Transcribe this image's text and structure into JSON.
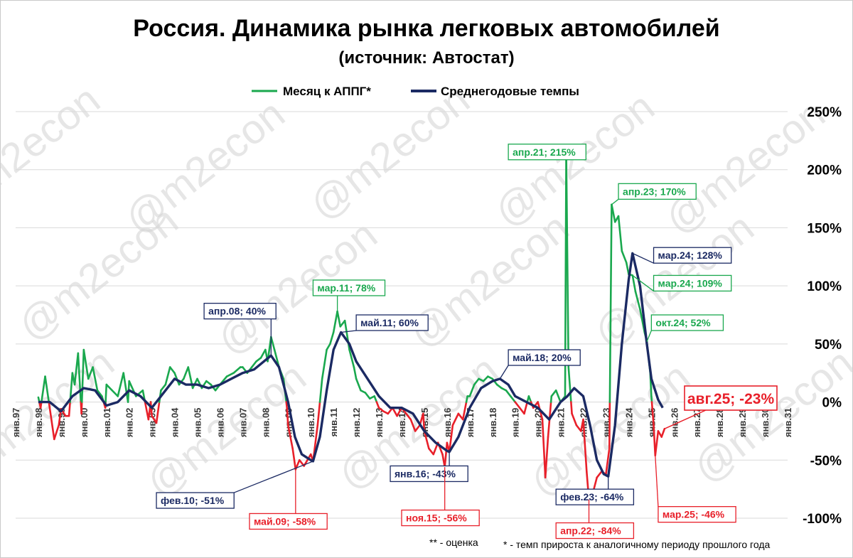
{
  "chart_data": {
    "type": "line",
    "title": "Россия. Динамика рынка легковых автомобилей",
    "subtitle": "(источник: Автостат)",
    "ylim": [
      -1.0,
      2.5
    ],
    "y_ticks": [
      "250%",
      "200%",
      "150%",
      "100%",
      "50%",
      "0%",
      "-50%",
      "-100%"
    ],
    "x_ticks": [
      "янв.97",
      "янв.98",
      "янв.99",
      "янв.00",
      "янв.01",
      "янв.02",
      "янв.03",
      "янв.04",
      "янв.05",
      "янв.06",
      "янв.07",
      "янв.08",
      "янв.09",
      "янв.10",
      "янв.11",
      "янв.12",
      "янв.13",
      "янв.14",
      "янв.15",
      "янв.16",
      "янв.17",
      "янв.18",
      "янв.19",
      "янв.20",
      "янв.21",
      "янв.22",
      "янв.23",
      "янв.24",
      "янв.25",
      "янв.26",
      "янв.27",
      "янв.28",
      "янв.29",
      "янв.30",
      "янв.31"
    ],
    "grid": true,
    "legend_position": "top-center",
    "series": [
      {
        "name": "Месяц к АППГ*",
        "color": "#1aa84e",
        "negative_color": "#e8202a",
        "points": [
          [
            1998.0,
            0.04
          ],
          [
            1998.1,
            -0.05
          ],
          [
            1998.3,
            0.22
          ],
          [
            1998.5,
            -0.05
          ],
          [
            1998.7,
            -0.32
          ],
          [
            1998.9,
            -0.2
          ],
          [
            1999.0,
            -0.06
          ],
          [
            1999.2,
            -0.12
          ],
          [
            1999.35,
            -0.12
          ],
          [
            1999.5,
            0.25
          ],
          [
            1999.6,
            0.15
          ],
          [
            1999.75,
            0.42
          ],
          [
            1999.9,
            -0.1
          ],
          [
            2000.0,
            0.45
          ],
          [
            2000.2,
            0.2
          ],
          [
            2000.4,
            0.3
          ],
          [
            2000.6,
            0.1
          ],
          [
            2000.8,
            0.05
          ],
          [
            2000.95,
            -0.05
          ],
          [
            2001.0,
            0.15
          ],
          [
            2001.25,
            0.1
          ],
          [
            2001.5,
            0.05
          ],
          [
            2001.75,
            0.25
          ],
          [
            2001.95,
            0.0
          ],
          [
            2002.0,
            0.18
          ],
          [
            2002.3,
            0.05
          ],
          [
            2002.6,
            0.1
          ],
          [
            2002.85,
            -0.15
          ],
          [
            2002.95,
            0.0
          ],
          [
            2003.0,
            -0.12
          ],
          [
            2003.2,
            -0.18
          ],
          [
            2003.4,
            0.1
          ],
          [
            2003.6,
            0.15
          ],
          [
            2003.8,
            0.3
          ],
          [
            2004.0,
            0.25
          ],
          [
            2004.2,
            0.15
          ],
          [
            2004.4,
            0.2
          ],
          [
            2004.6,
            0.3
          ],
          [
            2004.8,
            0.12
          ],
          [
            2005.0,
            0.2
          ],
          [
            2005.2,
            0.12
          ],
          [
            2005.4,
            0.18
          ],
          [
            2005.6,
            0.15
          ],
          [
            2005.8,
            0.1
          ],
          [
            2006.0,
            0.15
          ],
          [
            2006.3,
            0.22
          ],
          [
            2006.6,
            0.25
          ],
          [
            2006.9,
            0.3
          ],
          [
            2007.0,
            0.3
          ],
          [
            2007.2,
            0.25
          ],
          [
            2007.4,
            0.3
          ],
          [
            2007.6,
            0.35
          ],
          [
            2007.8,
            0.38
          ],
          [
            2008.0,
            0.45
          ],
          [
            2008.1,
            0.35
          ],
          [
            2008.25,
            0.56
          ],
          [
            2008.4,
            0.45
          ],
          [
            2008.6,
            0.3
          ],
          [
            2008.8,
            0.2
          ],
          [
            2008.95,
            -0.05
          ],
          [
            2009.0,
            -0.2
          ],
          [
            2009.2,
            -0.4
          ],
          [
            2009.33,
            -0.58
          ],
          [
            2009.5,
            -0.5
          ],
          [
            2009.7,
            -0.55
          ],
          [
            2009.85,
            -0.5
          ],
          [
            2010.0,
            -0.45
          ],
          [
            2010.1,
            -0.51
          ],
          [
            2010.3,
            -0.2
          ],
          [
            2010.5,
            0.2
          ],
          [
            2010.7,
            0.45
          ],
          [
            2010.85,
            0.5
          ],
          [
            2011.0,
            0.6
          ],
          [
            2011.17,
            0.78
          ],
          [
            2011.3,
            0.65
          ],
          [
            2011.5,
            0.7
          ],
          [
            2011.7,
            0.45
          ],
          [
            2011.9,
            0.3
          ],
          [
            2012.0,
            0.2
          ],
          [
            2012.2,
            0.1
          ],
          [
            2012.4,
            0.08
          ],
          [
            2012.6,
            0.03
          ],
          [
            2012.8,
            0.05
          ],
          [
            2013.0,
            -0.05
          ],
          [
            2013.2,
            -0.08
          ],
          [
            2013.4,
            -0.1
          ],
          [
            2013.6,
            -0.05
          ],
          [
            2013.8,
            -0.12
          ],
          [
            2014.0,
            -0.05
          ],
          [
            2014.2,
            -0.1
          ],
          [
            2014.4,
            -0.15
          ],
          [
            2014.6,
            -0.25
          ],
          [
            2014.8,
            -0.2
          ],
          [
            2014.95,
            -0.1
          ],
          [
            2015.0,
            -0.25
          ],
          [
            2015.2,
            -0.4
          ],
          [
            2015.4,
            -0.45
          ],
          [
            2015.6,
            -0.35
          ],
          [
            2015.8,
            -0.45
          ],
          [
            2015.9,
            -0.56
          ],
          [
            2016.0,
            -0.35
          ],
          [
            2016.1,
            -0.43
          ],
          [
            2016.25,
            -0.2
          ],
          [
            2016.5,
            -0.1
          ],
          [
            2016.7,
            -0.15
          ],
          [
            2016.9,
            0.05
          ],
          [
            2017.0,
            0.05
          ],
          [
            2017.2,
            0.15
          ],
          [
            2017.4,
            0.2
          ],
          [
            2017.6,
            0.18
          ],
          [
            2017.8,
            0.22
          ],
          [
            2018.0,
            0.2
          ],
          [
            2018.2,
            0.15
          ],
          [
            2018.4,
            0.12
          ],
          [
            2018.6,
            0.1
          ],
          [
            2018.8,
            0.05
          ],
          [
            2019.0,
            0.0
          ],
          [
            2019.2,
            -0.05
          ],
          [
            2019.4,
            -0.1
          ],
          [
            2019.6,
            0.05
          ],
          [
            2019.8,
            -0.05
          ],
          [
            2020.0,
            0.0
          ],
          [
            2020.2,
            -0.15
          ],
          [
            2020.33,
            -0.65
          ],
          [
            2020.45,
            -0.3
          ],
          [
            2020.6,
            0.05
          ],
          [
            2020.8,
            0.1
          ],
          [
            2021.0,
            0.0
          ],
          [
            2021.2,
            0.05
          ],
          [
            2021.25,
            2.15
          ],
          [
            2021.35,
            0.3
          ],
          [
            2021.5,
            -0.1
          ],
          [
            2021.7,
            -0.2
          ],
          [
            2021.9,
            -0.25
          ],
          [
            2022.0,
            -0.15
          ],
          [
            2022.15,
            -0.6
          ],
          [
            2022.25,
            -0.84
          ],
          [
            2022.4,
            -0.8
          ],
          [
            2022.6,
            -0.65
          ],
          [
            2022.8,
            -0.6
          ],
          [
            2023.0,
            -0.62
          ],
          [
            2023.15,
            -0.4
          ],
          [
            2023.25,
            1.7
          ],
          [
            2023.4,
            1.55
          ],
          [
            2023.55,
            1.6
          ],
          [
            2023.7,
            1.3
          ],
          [
            2023.9,
            1.2
          ],
          [
            2024.0,
            1.1
          ],
          [
            2024.17,
            1.09
          ],
          [
            2024.3,
            0.95
          ],
          [
            2024.5,
            0.8
          ],
          [
            2024.7,
            0.6
          ],
          [
            2024.8,
            0.52
          ],
          [
            2024.95,
            0.25
          ],
          [
            2025.0,
            0.05
          ],
          [
            2025.1,
            -0.2
          ],
          [
            2025.17,
            -0.46
          ],
          [
            2025.3,
            -0.25
          ],
          [
            2025.45,
            -0.3
          ],
          [
            2025.58,
            -0.23
          ]
        ]
      },
      {
        "name": "Среднегодовые темпы",
        "color": "#1b2a63",
        "points": [
          [
            1998.0,
            0.0
          ],
          [
            1998.5,
            0.0
          ],
          [
            1999.0,
            -0.08
          ],
          [
            1999.5,
            0.05
          ],
          [
            2000.0,
            0.12
          ],
          [
            2000.5,
            0.1
          ],
          [
            2001.0,
            -0.03
          ],
          [
            2001.5,
            0.0
          ],
          [
            2002.0,
            0.1
          ],
          [
            2002.5,
            0.05
          ],
          [
            2003.0,
            -0.05
          ],
          [
            2003.4,
            0.05
          ],
          [
            2004.0,
            0.2
          ],
          [
            2004.5,
            0.15
          ],
          [
            2005.0,
            0.15
          ],
          [
            2005.5,
            0.12
          ],
          [
            2006.0,
            0.15
          ],
          [
            2006.5,
            0.2
          ],
          [
            2007.0,
            0.25
          ],
          [
            2007.5,
            0.28
          ],
          [
            2008.0,
            0.36
          ],
          [
            2008.25,
            0.4
          ],
          [
            2008.6,
            0.3
          ],
          [
            2009.0,
            0.0
          ],
          [
            2009.3,
            -0.3
          ],
          [
            2009.6,
            -0.45
          ],
          [
            2010.0,
            -0.5
          ],
          [
            2010.1,
            -0.51
          ],
          [
            2010.4,
            -0.3
          ],
          [
            2010.7,
            0.1
          ],
          [
            2011.0,
            0.45
          ],
          [
            2011.33,
            0.6
          ],
          [
            2011.7,
            0.5
          ],
          [
            2012.0,
            0.35
          ],
          [
            2012.5,
            0.2
          ],
          [
            2013.0,
            0.05
          ],
          [
            2013.5,
            -0.05
          ],
          [
            2014.0,
            -0.05
          ],
          [
            2014.5,
            -0.1
          ],
          [
            2015.0,
            -0.25
          ],
          [
            2015.5,
            -0.35
          ],
          [
            2016.0,
            -0.42
          ],
          [
            2016.1,
            -0.43
          ],
          [
            2016.5,
            -0.3
          ],
          [
            2017.0,
            -0.05
          ],
          [
            2017.5,
            0.12
          ],
          [
            2018.0,
            0.18
          ],
          [
            2018.33,
            0.2
          ],
          [
            2018.7,
            0.15
          ],
          [
            2019.0,
            0.05
          ],
          [
            2019.5,
            0.0
          ],
          [
            2020.0,
            -0.05
          ],
          [
            2020.5,
            -0.15
          ],
          [
            2021.0,
            0.0
          ],
          [
            2021.3,
            0.05
          ],
          [
            2021.6,
            0.12
          ],
          [
            2022.0,
            0.05
          ],
          [
            2022.3,
            -0.2
          ],
          [
            2022.6,
            -0.5
          ],
          [
            2022.9,
            -0.62
          ],
          [
            2023.1,
            -0.64
          ],
          [
            2023.4,
            -0.2
          ],
          [
            2023.7,
            0.5
          ],
          [
            2024.0,
            1.05
          ],
          [
            2024.17,
            1.28
          ],
          [
            2024.5,
            1.0
          ],
          [
            2024.8,
            0.5
          ],
          [
            2025.0,
            0.2
          ],
          [
            2025.3,
            0.02
          ],
          [
            2025.5,
            -0.05
          ]
        ]
      }
    ],
    "annotations": [
      {
        "text": "апр.21; 215%",
        "x": 2021.25,
        "y": 2.15,
        "color": "#1aa84e",
        "label_x": 2018.7,
        "label_y": 2.22
      },
      {
        "text": "апр.23; 170%",
        "x": 2023.25,
        "y": 1.7,
        "color": "#1aa84e",
        "label_x": 2023.55,
        "label_y": 1.88
      },
      {
        "text": "мар.11; 78%",
        "x": 2011.17,
        "y": 0.78,
        "color": "#1aa84e",
        "label_x": 2010.1,
        "label_y": 1.05
      },
      {
        "text": "мар.24; 109%",
        "x": 2024.17,
        "y": 1.09,
        "color": "#1aa84e",
        "label_x": 2025.1,
        "label_y": 1.09
      },
      {
        "text": "окт.24; 52%",
        "x": 2024.8,
        "y": 0.52,
        "color": "#1aa84e",
        "label_x": 2025.0,
        "label_y": 0.75
      },
      {
        "text": "апр.08; 40%",
        "x": 2008.25,
        "y": 0.4,
        "color": "#1b2a63",
        "label_x": 2005.3,
        "label_y": 0.85
      },
      {
        "text": "май.11; 60%",
        "x": 2011.33,
        "y": 0.6,
        "color": "#1b2a63",
        "label_x": 2012.0,
        "label_y": 0.75
      },
      {
        "text": "май.18; 20%",
        "x": 2018.33,
        "y": 0.2,
        "color": "#1b2a63",
        "label_x": 2018.7,
        "label_y": 0.45
      },
      {
        "text": "мар.24; 128%",
        "x": 2024.17,
        "y": 1.28,
        "color": "#1b2a63",
        "label_x": 2025.1,
        "label_y": 1.33
      },
      {
        "text": "фев.10; -51%",
        "x": 2010.1,
        "y": -0.51,
        "color": "#1b2a63",
        "label_x": 2003.2,
        "label_y": -0.78
      },
      {
        "text": "янв.16; -43%",
        "x": 2016.1,
        "y": -0.43,
        "color": "#1b2a63",
        "label_x": 2013.5,
        "label_y": -0.55
      },
      {
        "text": "фев.23; -64%",
        "x": 2023.1,
        "y": -0.64,
        "color": "#1b2a63",
        "label_x": 2020.8,
        "label_y": -0.75
      },
      {
        "text": "май.09; -58%",
        "x": 2009.33,
        "y": -0.58,
        "color": "#e8202a",
        "label_x": 2007.3,
        "label_y": -0.96
      },
      {
        "text": "ноя.15; -56%",
        "x": 2015.9,
        "y": -0.56,
        "color": "#e8202a",
        "label_x": 2014.0,
        "label_y": -0.93
      },
      {
        "text": "апр.22; -84%",
        "x": 2022.25,
        "y": -0.84,
        "color": "#e8202a",
        "label_x": 2020.8,
        "label_y": -1.04
      },
      {
        "text": "мар.25; -46%",
        "x": 2025.17,
        "y": -0.46,
        "color": "#e8202a",
        "label_x": 2025.3,
        "label_y": -0.9
      }
    ],
    "highlight": {
      "text": "авг.25; -23%",
      "x": 2025.58,
      "y": -0.23,
      "color": "#e8202a"
    }
  },
  "watermark": "@m2econ",
  "footnote": {
    "estimate": "** - оценка",
    "definition": "* - темп прироста к аналогичному периоду прошлого года"
  }
}
